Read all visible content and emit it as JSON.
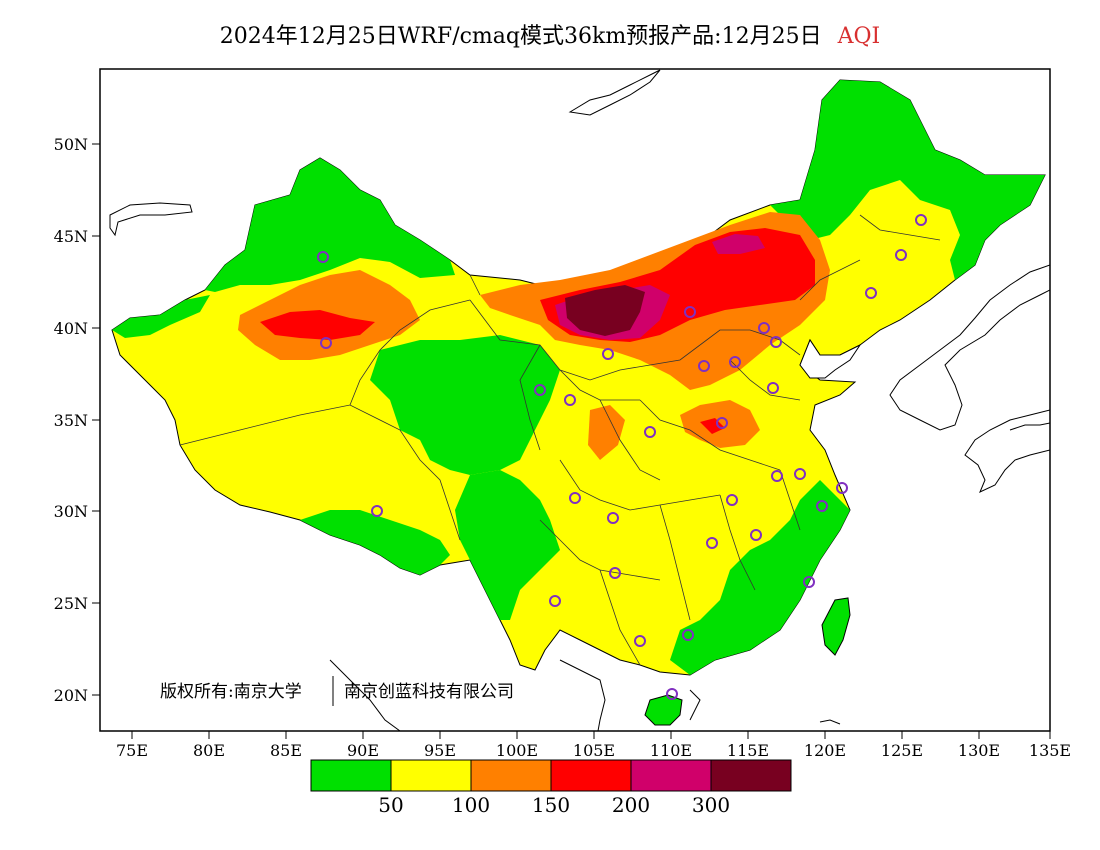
{
  "title": {
    "main": "2024年12月25日WRF/cmaq模式36km预报产品:12月25日",
    "variable": "AQI"
  },
  "map": {
    "lon_ticks": [
      "75E",
      "80E",
      "85E",
      "90E",
      "95E",
      "100E",
      "105E",
      "110E",
      "115E",
      "120E",
      "125E",
      "130E",
      "135E"
    ],
    "lat_ticks": [
      "50N",
      "45N",
      "40N",
      "35N",
      "30N",
      "25N",
      "20N"
    ],
    "lon_range": [
      73,
      135
    ],
    "lat_range": [
      18,
      54
    ],
    "copyright_left": "版权所有:南京大学",
    "copyright_right": "南京创蓝科技有限公司",
    "colors": {
      "good": "#00e000",
      "moderate": "#ffff00",
      "unhealthy_sensitive": "#ff8000",
      "unhealthy": "#ff0000",
      "very_unhealthy": "#d0006a",
      "hazardous": "#780020",
      "station_marker": "#8030c0"
    }
  },
  "legend": {
    "labels": [
      "50",
      "100",
      "150",
      "200",
      "300"
    ],
    "colors": [
      "#00e000",
      "#ffff00",
      "#ff8000",
      "#ff0000",
      "#d0006a",
      "#780020"
    ]
  }
}
